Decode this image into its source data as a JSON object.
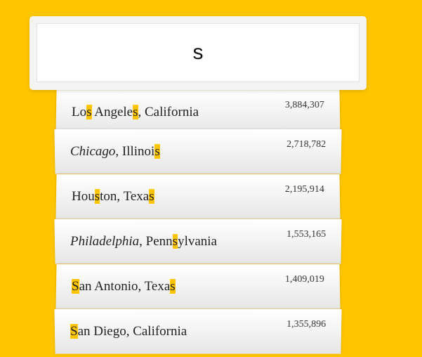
{
  "colors": {
    "background": "#FFC600",
    "highlight": "#FFC600"
  },
  "search": {
    "value": "s",
    "placeholder": ""
  },
  "suggestions": [
    {
      "name_id": "los-angeles",
      "parts": [
        "Lo",
        "s",
        " Angele",
        "s",
        ", California"
      ],
      "hl": [
        1,
        3
      ],
      "italic": [],
      "population": "3,884,307"
    },
    {
      "name_id": "chicago",
      "parts": [
        "Chicago",
        ", Illinoi",
        "s"
      ],
      "hl": [
        2
      ],
      "italic": [
        0
      ],
      "population": "2,718,782"
    },
    {
      "name_id": "houston",
      "parts": [
        "Hou",
        "s",
        "ton, Texa",
        "s"
      ],
      "hl": [
        1,
        3
      ],
      "italic": [],
      "population": "2,195,914"
    },
    {
      "name_id": "philadelphia",
      "parts": [
        "Philadelphia",
        ", Penn",
        "s",
        "ylvania"
      ],
      "hl": [
        2
      ],
      "italic": [
        0
      ],
      "population": "1,553,165"
    },
    {
      "name_id": "san-antonio",
      "parts": [
        "S",
        "an Antonio, Texa",
        "s"
      ],
      "hl": [
        0,
        2
      ],
      "italic": [],
      "population": "1,409,019"
    },
    {
      "name_id": "san-diego",
      "parts": [
        "S",
        "an Diego, California"
      ],
      "hl": [
        0
      ],
      "italic": [],
      "population": "1,355,896"
    }
  ]
}
